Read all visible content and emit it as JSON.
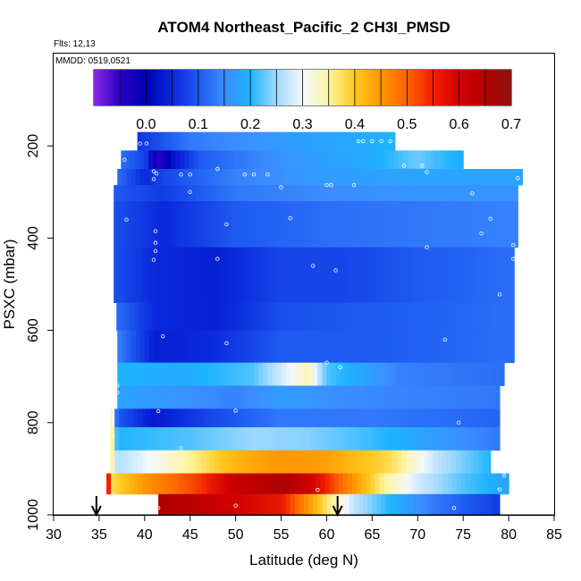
{
  "chart_data": {
    "type": "heatmap",
    "title": "ATOM4 Northeast_Pacific_2 CH3I_PMSD",
    "flights_label": "Flts: 12,13",
    "dates_label": "MMDD: 0519,0521",
    "xlabel": "Latitude (deg N)",
    "ylabel": "PSXC (mbar)",
    "xlim": [
      30,
      85
    ],
    "ylim": [
      1000,
      0
    ],
    "x_ticks": [
      "30",
      "35",
      "40",
      "45",
      "50",
      "55",
      "60",
      "65",
      "70",
      "75",
      "80",
      "85"
    ],
    "y_ticks": [
      "200",
      "400",
      "600",
      "800",
      "1000"
    ],
    "colorbar": {
      "range": [
        -0.1,
        0.7
      ],
      "ticks": [
        "0.0",
        "0.1",
        "0.2",
        "0.3",
        "0.4",
        "0.5",
        "0.6",
        "0.7"
      ],
      "stops": [
        {
          "v": -0.1,
          "c": "#8a2be2"
        },
        {
          "v": -0.05,
          "c": "#2a00c8"
        },
        {
          "v": 0.0,
          "c": "#0000b4"
        },
        {
          "v": 0.05,
          "c": "#0a28dc"
        },
        {
          "v": 0.1,
          "c": "#1e5af0"
        },
        {
          "v": 0.15,
          "c": "#3c8cff"
        },
        {
          "v": 0.2,
          "c": "#1eb4ff"
        },
        {
          "v": 0.25,
          "c": "#9fd8ff"
        },
        {
          "v": 0.3,
          "c": "#f2f8ff"
        },
        {
          "v": 0.35,
          "c": "#fff5a0"
        },
        {
          "v": 0.4,
          "c": "#ffc81e"
        },
        {
          "v": 0.45,
          "c": "#ff9600"
        },
        {
          "v": 0.5,
          "c": "#ff6400"
        },
        {
          "v": 0.55,
          "c": "#f01e00"
        },
        {
          "v": 0.6,
          "c": "#d20000"
        },
        {
          "v": 0.65,
          "c": "#b40000"
        },
        {
          "v": 0.7,
          "c": "#8c1414"
        }
      ]
    },
    "bands": [
      {
        "p_top": 170,
        "p_bot": 210,
        "lat_start": 39.2,
        "lat_end": 67.5,
        "keys": [
          [
            39.2,
            0.06
          ],
          [
            45,
            0.13
          ],
          [
            52,
            0.16
          ],
          [
            60,
            0.18
          ],
          [
            67.5,
            0.2
          ]
        ]
      },
      {
        "p_top": 210,
        "p_bot": 250,
        "lat_start": 37.4,
        "lat_end": 75.0,
        "keys": [
          [
            37.4,
            0.12
          ],
          [
            40,
            0.08
          ],
          [
            41.5,
            -0.05
          ],
          [
            43,
            0.02
          ],
          [
            46,
            0.1
          ],
          [
            55,
            0.16
          ],
          [
            65,
            0.19
          ],
          [
            70,
            0.23
          ],
          [
            75,
            0.19
          ]
        ]
      },
      {
        "p_top": 250,
        "p_bot": 285,
        "lat_start": 37.0,
        "lat_end": 81.5,
        "keys": [
          [
            37,
            0.12
          ],
          [
            40,
            0.05
          ],
          [
            42,
            0.08
          ],
          [
            50,
            0.14
          ],
          [
            60,
            0.17
          ],
          [
            70,
            0.18
          ],
          [
            81.5,
            0.18
          ]
        ]
      },
      {
        "p_top": 285,
        "p_bot": 320,
        "lat_start": 36.6,
        "lat_end": 81.0,
        "keys": [
          [
            36.6,
            0.1
          ],
          [
            42,
            0.07
          ],
          [
            50,
            0.13
          ],
          [
            60,
            0.15
          ],
          [
            70,
            0.16
          ],
          [
            81,
            0.16
          ]
        ]
      },
      {
        "p_top": 320,
        "p_bot": 420,
        "lat_start": 36.6,
        "lat_end": 81.0,
        "keys": [
          [
            36.6,
            0.09
          ],
          [
            42,
            0.05
          ],
          [
            50,
            0.1
          ],
          [
            60,
            0.12
          ],
          [
            70,
            0.13
          ],
          [
            81,
            0.14
          ]
        ]
      },
      {
        "p_top": 420,
        "p_bot": 540,
        "lat_start": 36.6,
        "lat_end": 80.6,
        "keys": [
          [
            36.6,
            0.09
          ],
          [
            41,
            0.05
          ],
          [
            48,
            0.04
          ],
          [
            55,
            0.08
          ],
          [
            62,
            0.08
          ],
          [
            70,
            0.1
          ],
          [
            80.6,
            0.12
          ]
        ]
      },
      {
        "p_top": 540,
        "p_bot": 600,
        "lat_start": 36.9,
        "lat_end": 80.6,
        "keys": [
          [
            36.9,
            0.12
          ],
          [
            41,
            0.05
          ],
          [
            48,
            0.04
          ],
          [
            55,
            0.09
          ],
          [
            65,
            0.1
          ],
          [
            80.6,
            0.12
          ]
        ]
      },
      {
        "p_top": 600,
        "p_bot": 670,
        "lat_start": 37.0,
        "lat_end": 80.6,
        "keys": [
          [
            37,
            0.14
          ],
          [
            41,
            0.04
          ],
          [
            47,
            0.05
          ],
          [
            55,
            0.1
          ],
          [
            65,
            0.1
          ],
          [
            80.6,
            0.12
          ]
        ]
      },
      {
        "p_top": 670,
        "p_bot": 720,
        "lat_start": 37.0,
        "lat_end": 79.5,
        "keys": [
          [
            37,
            0.2
          ],
          [
            44,
            0.19
          ],
          [
            52,
            0.22
          ],
          [
            56,
            0.3
          ],
          [
            58,
            0.34
          ],
          [
            60,
            0.22
          ],
          [
            68,
            0.14
          ],
          [
            79.5,
            0.12
          ]
        ]
      },
      {
        "p_top": 720,
        "p_bot": 770,
        "lat_start": 37.0,
        "lat_end": 79.0,
        "keys": [
          [
            37,
            0.18
          ],
          [
            50,
            0.14
          ],
          [
            55,
            0.17
          ],
          [
            62,
            0.15
          ],
          [
            79,
            0.13
          ]
        ]
      },
      {
        "p_top": 770,
        "p_bot": 810,
        "lat_start": 36.2,
        "lat_end": 79.0,
        "keys": [
          [
            36.2,
            0.42
          ],
          [
            37,
            0.1
          ],
          [
            41,
            0.03
          ],
          [
            47,
            0.08
          ],
          [
            55,
            0.13
          ],
          [
            65,
            0.13
          ],
          [
            79,
            0.11
          ]
        ]
      },
      {
        "p_top": 810,
        "p_bot": 860,
        "lat_start": 36.2,
        "lat_end": 79.0,
        "keys": [
          [
            36.2,
            0.42
          ],
          [
            37,
            0.2
          ],
          [
            45,
            0.22
          ],
          [
            52,
            0.25
          ],
          [
            58,
            0.24
          ],
          [
            65,
            0.21
          ],
          [
            79,
            0.13
          ]
        ]
      },
      {
        "p_top": 860,
        "p_bot": 910,
        "lat_start": 36.2,
        "lat_end": 78.0,
        "keys": [
          [
            36.2,
            0.38
          ],
          [
            37,
            0.26
          ],
          [
            44,
            0.34
          ],
          [
            50,
            0.42
          ],
          [
            55,
            0.45
          ],
          [
            60,
            0.44
          ],
          [
            67,
            0.38
          ],
          [
            72,
            0.27
          ],
          [
            78,
            0.2
          ]
        ]
      },
      {
        "p_top": 910,
        "p_bot": 955,
        "lat_start": 35.8,
        "lat_end": 80.0,
        "keys": [
          [
            35.8,
            0.64
          ],
          [
            36.5,
            0.38
          ],
          [
            40,
            0.45
          ],
          [
            46,
            0.53
          ],
          [
            50,
            0.62
          ],
          [
            55,
            0.66
          ],
          [
            58,
            0.61
          ],
          [
            62,
            0.48
          ],
          [
            66,
            0.36
          ],
          [
            70,
            0.28
          ],
          [
            75,
            0.22
          ],
          [
            80,
            0.18
          ]
        ]
      },
      {
        "p_top": 955,
        "p_bot": 1000,
        "lat_start": 41.5,
        "lat_end": 79.0,
        "keys": [
          [
            41.5,
            0.66
          ],
          [
            45,
            0.64
          ],
          [
            50,
            0.6
          ],
          [
            55,
            0.56
          ],
          [
            58,
            0.45
          ],
          [
            60,
            0.37
          ],
          [
            63,
            0.27
          ],
          [
            67,
            0.2
          ],
          [
            72,
            0.13
          ],
          [
            79,
            0.07
          ]
        ]
      }
    ],
    "samples": [
      [
        39.5,
        195
      ],
      [
        40.2,
        195
      ],
      [
        64,
        190
      ],
      [
        65,
        190
      ],
      [
        66,
        190
      ],
      [
        67,
        190
      ],
      [
        63.5,
        190
      ],
      [
        37.8,
        230
      ],
      [
        41,
        255
      ],
      [
        41.3,
        260
      ],
      [
        48,
        250
      ],
      [
        68.5,
        243
      ],
      [
        70.5,
        243
      ],
      [
        71,
        257
      ],
      [
        41,
        272
      ],
      [
        44,
        262
      ],
      [
        45,
        262
      ],
      [
        51,
        262
      ],
      [
        52,
        262
      ],
      [
        53.5,
        262
      ],
      [
        60,
        285
      ],
      [
        60.5,
        285
      ],
      [
        63,
        285
      ],
      [
        55,
        290
      ],
      [
        45,
        300
      ],
      [
        76,
        303
      ],
      [
        81,
        270
      ],
      [
        38,
        360
      ],
      [
        49,
        370
      ],
      [
        56,
        357
      ],
      [
        78,
        358
      ],
      [
        41.2,
        385
      ],
      [
        41.2,
        410
      ],
      [
        41.2,
        428
      ],
      [
        71,
        420
      ],
      [
        77,
        390
      ],
      [
        80.5,
        415
      ],
      [
        41,
        447
      ],
      [
        48,
        445
      ],
      [
        58.5,
        460
      ],
      [
        61,
        470
      ],
      [
        80.5,
        445
      ],
      [
        79,
        522
      ],
      [
        42,
        613
      ],
      [
        49,
        628
      ],
      [
        73,
        620
      ],
      [
        60,
        670
      ],
      [
        61.5,
        680
      ],
      [
        37,
        720
      ],
      [
        37,
        735
      ],
      [
        41.5,
        775
      ],
      [
        50,
        774
      ],
      [
        36.5,
        830
      ],
      [
        44,
        855
      ],
      [
        74.5,
        800
      ],
      [
        79.5,
        915
      ],
      [
        79,
        945
      ],
      [
        59,
        946
      ],
      [
        36.5,
        955
      ],
      [
        50,
        980
      ],
      [
        41.5,
        985
      ],
      [
        74,
        985
      ]
    ],
    "arrows": [
      34.7,
      61.2
    ]
  }
}
